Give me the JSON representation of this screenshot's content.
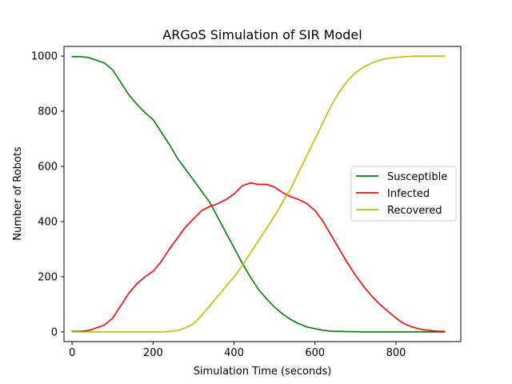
{
  "chart_data": {
    "type": "line",
    "title": "ARGoS Simulation of SIR Model",
    "xlabel": "Simulation Time (seconds)",
    "ylabel": "Number of Robots",
    "xlim": [
      -20,
      960
    ],
    "ylim": [
      -35,
      1035
    ],
    "xticks": [
      0,
      200,
      400,
      600,
      800
    ],
    "yticks": [
      0,
      200,
      400,
      600,
      800,
      1000
    ],
    "grid": false,
    "legend_position": "center-right",
    "x": [
      0,
      20,
      40,
      60,
      80,
      100,
      120,
      140,
      160,
      180,
      200,
      220,
      240,
      260,
      280,
      300,
      320,
      340,
      360,
      380,
      400,
      420,
      440,
      460,
      480,
      500,
      520,
      540,
      560,
      580,
      600,
      620,
      640,
      660,
      680,
      700,
      720,
      740,
      760,
      780,
      800,
      820,
      840,
      860,
      880,
      900,
      920
    ],
    "series": [
      {
        "name": "Susceptible",
        "color": "#008000",
        "values": [
          998,
          998,
          995,
          985,
          975,
          950,
          905,
          860,
          825,
          795,
          770,
          725,
          680,
          630,
          590,
          550,
          510,
          470,
          415,
          360,
          305,
          250,
          200,
          155,
          120,
          90,
          65,
          45,
          30,
          18,
          12,
          6,
          3,
          2,
          1,
          1,
          0,
          0,
          0,
          0,
          0,
          0,
          0,
          0,
          0,
          0,
          0
        ]
      },
      {
        "name": "Infected",
        "color": "#ff0000",
        "values": [
          2,
          2,
          5,
          15,
          25,
          50,
          95,
          140,
          175,
          200,
          220,
          255,
          300,
          340,
          380,
          410,
          440,
          455,
          465,
          480,
          500,
          530,
          540,
          535,
          535,
          525,
          505,
          490,
          480,
          465,
          440,
          400,
          350,
          300,
          250,
          205,
          165,
          130,
          100,
          75,
          50,
          30,
          18,
          10,
          6,
          3,
          2
        ]
      },
      {
        "name": "Recovered",
        "color": "#bfbf00",
        "values": [
          0,
          0,
          0,
          0,
          0,
          0,
          0,
          0,
          0,
          0,
          0,
          0,
          2,
          5,
          15,
          30,
          60,
          95,
          130,
          165,
          200,
          240,
          285,
          330,
          375,
          420,
          470,
          520,
          580,
          640,
          700,
          760,
          820,
          870,
          910,
          940,
          960,
          975,
          985,
          992,
          995,
          998,
          999,
          1000,
          1000,
          1000,
          1000
        ]
      }
    ]
  }
}
